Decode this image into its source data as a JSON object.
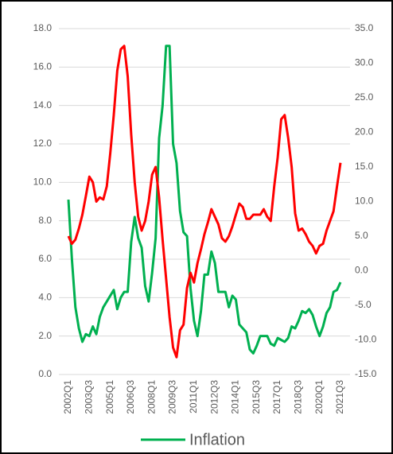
{
  "chart_data": {
    "type": "line",
    "categories": [
      "2002Q1",
      null,
      null,
      null,
      null,
      null,
      "2003Q3",
      null,
      null,
      null,
      null,
      null,
      "2005Q1",
      null,
      null,
      null,
      null,
      null,
      "2006Q3",
      null,
      null,
      null,
      null,
      null,
      "2008Q1",
      null,
      null,
      null,
      null,
      null,
      "2009Q3",
      null,
      null,
      null,
      null,
      null,
      "2011Q1",
      null,
      null,
      null,
      null,
      null,
      "2012Q3",
      null,
      null,
      null,
      null,
      null,
      "2014Q1",
      null,
      null,
      null,
      null,
      null,
      "2015Q3",
      null,
      null,
      null,
      null,
      null,
      "2017Q1",
      null,
      null,
      null,
      null,
      null,
      "2018Q3",
      null,
      null,
      null,
      null,
      null,
      "2020Q1",
      null,
      null,
      null,
      null,
      null,
      "2021Q3"
    ],
    "series": [
      {
        "name": "Inflation",
        "color": "#00b050",
        "axis": "y",
        "values": [
          9.1,
          6.0,
          3.5,
          2.4,
          1.7,
          2.1,
          2.0,
          2.5,
          2.1,
          3.0,
          3.5,
          3.8,
          4.1,
          4.4,
          3.4,
          4.0,
          4.3,
          4.3,
          6.9,
          8.2,
          7.1,
          6.6,
          4.6,
          3.8,
          5.3,
          7.1,
          12.3,
          14.0,
          17.1,
          17.1,
          12.0,
          11.0,
          8.5,
          7.4,
          7.2,
          4.5,
          2.8,
          2.0,
          3.3,
          5.2,
          5.2,
          6.4,
          5.8,
          4.3,
          4.3,
          4.3,
          3.5,
          4.1,
          3.9,
          2.6,
          2.4,
          2.2,
          1.3,
          1.1,
          1.5,
          2.0,
          2.0,
          2.0,
          1.6,
          1.5,
          1.9,
          1.8,
          1.7,
          1.9,
          2.5,
          2.4,
          2.8,
          3.3,
          3.2,
          3.4,
          3.1,
          2.5,
          2.0,
          2.5,
          3.2,
          3.5,
          4.3,
          4.4,
          4.8
        ]
      },
      {
        "color": "#ff0000",
        "axis": "y2",
        "values": [
          5.0,
          3.9,
          4.5,
          6.1,
          8.1,
          10.8,
          13.6,
          12.8,
          10.0,
          10.6,
          10.3,
          12.2,
          17.0,
          22.5,
          28.9,
          32.0,
          32.5,
          28.1,
          19.7,
          12.8,
          7.8,
          5.8,
          7.2,
          10.0,
          13.9,
          15.0,
          10.6,
          4.5,
          -1.1,
          -6.7,
          -11.1,
          -12.5,
          -8.6,
          -7.8,
          -2.5,
          -0.3,
          -1.7,
          1.1,
          3.1,
          5.3,
          7.0,
          8.9,
          7.8,
          6.7,
          4.7,
          4.2,
          5.0,
          6.4,
          8.1,
          9.7,
          9.2,
          7.5,
          7.5,
          8.1,
          8.1,
          8.1,
          8.9,
          7.8,
          7.2,
          12.2,
          16.4,
          21.9,
          22.5,
          19.2,
          15.0,
          8.3,
          5.8,
          6.1,
          5.3,
          4.2,
          3.6,
          2.5,
          3.6,
          3.9,
          5.8,
          7.2,
          8.6,
          12.2,
          15.6
        ]
      }
    ],
    "ylim": [
      0,
      18
    ],
    "yticks": [
      {
        "value": 0,
        "label": "0.0"
      },
      {
        "value": 2,
        "label": "2.0"
      },
      {
        "value": 4,
        "label": "4.0"
      },
      {
        "value": 6,
        "label": "6.0"
      },
      {
        "value": 8,
        "label": "8.0"
      },
      {
        "value": 10,
        "label": "10.0"
      },
      {
        "value": 12,
        "label": "12.0"
      },
      {
        "value": 14,
        "label": "14.0"
      },
      {
        "value": 16,
        "label": "16.0"
      },
      {
        "value": 18,
        "label": "18.0"
      }
    ],
    "y2lim": [
      -15,
      35
    ],
    "y2ticks": [
      {
        "value": -15,
        "label": "-15.0"
      },
      {
        "value": -10,
        "label": "-10.0"
      },
      {
        "value": -5,
        "label": "-5.0"
      },
      {
        "value": 0,
        "label": "0.0"
      },
      {
        "value": 5,
        "label": "5.0"
      },
      {
        "value": 10,
        "label": "10.0"
      },
      {
        "value": 15,
        "label": "15.0"
      },
      {
        "value": 20,
        "label": "20.0"
      },
      {
        "value": 25,
        "label": "25.0"
      },
      {
        "value": 30,
        "label": "30.0"
      },
      {
        "value": 35,
        "label": "35.0"
      }
    ],
    "grid": true,
    "legend": "bottom"
  }
}
